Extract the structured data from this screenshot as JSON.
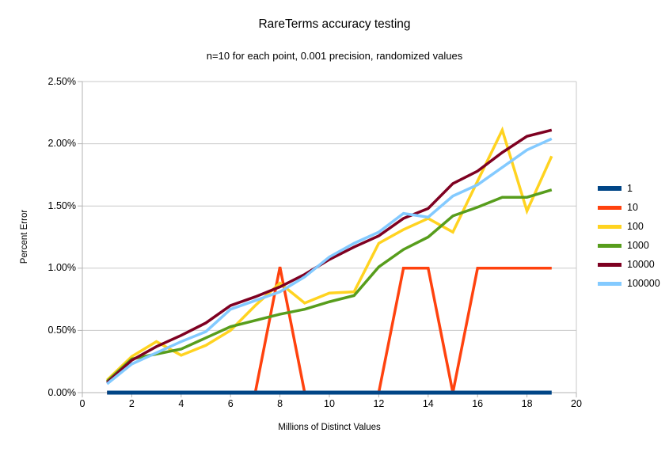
{
  "title": "RareTerms accuracy testing",
  "subtitle": "n=10 for each point, 0.001 precision, randomized values",
  "chart_data": {
    "type": "line",
    "title": "RareTerms accuracy testing",
    "subtitle": "n=10 for each point, 0.001 precision, randomized values",
    "xlabel": "Millions of Distinct Values",
    "ylabel": "Percent Error",
    "xlim": [
      0,
      20
    ],
    "ylim": [
      0,
      2.5
    ],
    "x_ticks": [
      "0",
      "2",
      "4",
      "6",
      "8",
      "10",
      "12",
      "14",
      "16",
      "18",
      "20"
    ],
    "x_tick_values": [
      0,
      2,
      4,
      6,
      8,
      10,
      12,
      14,
      16,
      18,
      20
    ],
    "y_ticks": [
      "0.00%",
      "0.50%",
      "1.00%",
      "1.50%",
      "2.00%",
      "2.50%"
    ],
    "y_tick_values": [
      0,
      0.5,
      1.0,
      1.5,
      2.0,
      2.5
    ],
    "grid": "horizontal",
    "legend_position": "right",
    "grid_color": "#c9c9c9",
    "axis_color": "#b3b3b3",
    "x": [
      1,
      2,
      3,
      4,
      5,
      6,
      7,
      8,
      9,
      10,
      11,
      12,
      13,
      14,
      15,
      16,
      17,
      18,
      19
    ],
    "series": [
      {
        "name": "1",
        "color": "#004586",
        "width": 5,
        "values": [
          0,
          0,
          0,
          0,
          0,
          0,
          0,
          0,
          0,
          0,
          0,
          0,
          0,
          0,
          0,
          0,
          0,
          0,
          0
        ]
      },
      {
        "name": "10",
        "color": "#FF420E",
        "width": 3.5,
        "values": [
          0,
          0,
          0,
          0,
          0,
          0,
          0,
          1.01,
          0,
          0,
          0,
          0,
          1.0,
          1.0,
          0,
          1.0,
          1.0,
          1.0,
          1.0
        ]
      },
      {
        "name": "100",
        "color": "#FFD320",
        "width": 3.5,
        "values": [
          0.1,
          0.29,
          0.41,
          0.3,
          0.38,
          0.5,
          0.7,
          0.88,
          0.72,
          0.8,
          0.81,
          1.2,
          1.31,
          1.4,
          1.29,
          1.7,
          2.11,
          1.46,
          1.9
        ]
      },
      {
        "name": "1000",
        "color": "#579D1C",
        "width": 3.5,
        "values": [
          0.09,
          0.27,
          0.31,
          0.35,
          0.44,
          0.53,
          0.58,
          0.63,
          0.67,
          0.73,
          0.78,
          1.01,
          1.15,
          1.25,
          1.42,
          1.49,
          1.57,
          1.57,
          1.63
        ]
      },
      {
        "name": "10000",
        "color": "#7E0021",
        "width": 3.5,
        "values": [
          0.08,
          0.26,
          0.37,
          0.46,
          0.56,
          0.7,
          0.77,
          0.85,
          0.95,
          1.07,
          1.17,
          1.26,
          1.4,
          1.48,
          1.68,
          1.78,
          1.93,
          2.06,
          2.11
        ]
      },
      {
        "name": "100000",
        "color": "#83CAFF",
        "width": 3.5,
        "values": [
          0.07,
          0.23,
          0.32,
          0.41,
          0.49,
          0.67,
          0.74,
          0.81,
          0.93,
          1.09,
          1.2,
          1.29,
          1.44,
          1.41,
          1.58,
          1.67,
          1.81,
          1.95,
          2.04
        ]
      }
    ],
    "draw_order": [
      "10",
      "100",
      "1000",
      "10000",
      "100000",
      "1"
    ]
  }
}
